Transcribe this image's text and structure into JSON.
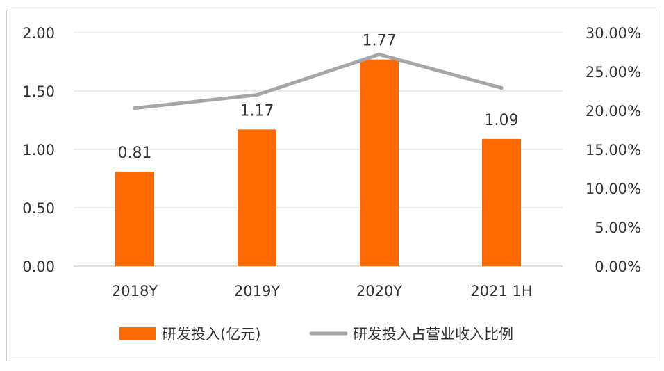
{
  "chart_data": {
    "type": "bar",
    "categories": [
      "2018Y",
      "2019Y",
      "2020Y",
      "2021 1H"
    ],
    "series": [
      {
        "name": "研发投入(亿元)",
        "type": "bar",
        "axis": "left",
        "values": [
          0.81,
          1.17,
          1.77,
          1.09
        ],
        "data_labels": [
          "0.81",
          "1.17",
          "1.77",
          "1.09"
        ],
        "color": "#ff6a00"
      },
      {
        "name": "研发投入占营业收入比例",
        "type": "line",
        "axis": "right",
        "values": [
          20.3,
          22.0,
          27.2,
          22.9
        ],
        "color": "#a6a6a6"
      }
    ],
    "y_left": {
      "ylim": [
        0,
        2.0
      ],
      "ticks": [
        "0.00",
        "0.50",
        "1.00",
        "1.50",
        "2.00"
      ]
    },
    "y_right": {
      "ylim": [
        0,
        30
      ],
      "ticks": [
        "0.00%",
        "5.00%",
        "10.00%",
        "15.00%",
        "20.00%",
        "25.00%",
        "30.00%"
      ]
    },
    "grid": true,
    "legend": "bottom"
  }
}
